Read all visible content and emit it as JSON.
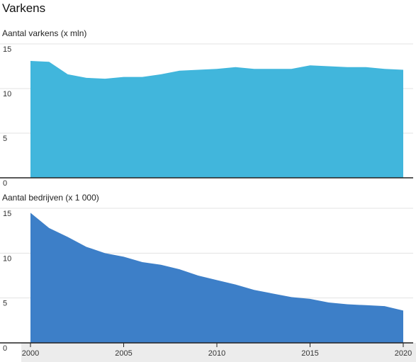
{
  "title": "Varkens",
  "colors": {
    "pigs": "#41b6dc",
    "farms": "#3d7fc8",
    "grid": "#e3e3e3",
    "axis": "#222222",
    "xband": "#ececec"
  },
  "chart_data": [
    {
      "type": "area",
      "title": "Aantal varkens (x mln)",
      "x": [
        2000,
        2001,
        2002,
        2003,
        2004,
        2005,
        2006,
        2007,
        2008,
        2009,
        2010,
        2011,
        2012,
        2013,
        2014,
        2015,
        2016,
        2017,
        2018,
        2019,
        2020
      ],
      "values": [
        13.1,
        13.0,
        11.6,
        11.2,
        11.1,
        11.3,
        11.3,
        11.6,
        12.0,
        12.1,
        12.2,
        12.4,
        12.2,
        12.2,
        12.2,
        12.6,
        12.5,
        12.4,
        12.4,
        12.2,
        12.1
      ],
      "ylim": [
        0,
        15
      ],
      "yticks": [
        "15",
        "10",
        "5",
        "0"
      ],
      "grid": true
    },
    {
      "type": "area",
      "title": "Aantal bedrijven (x 1 000)",
      "x": [
        2000,
        2001,
        2002,
        2003,
        2004,
        2005,
        2006,
        2007,
        2008,
        2009,
        2010,
        2011,
        2012,
        2013,
        2014,
        2015,
        2016,
        2017,
        2018,
        2019,
        2020
      ],
      "values": [
        14.5,
        12.8,
        11.8,
        10.7,
        10.0,
        9.6,
        9.0,
        8.7,
        8.2,
        7.5,
        7.0,
        6.5,
        5.9,
        5.5,
        5.1,
        4.9,
        4.5,
        4.3,
        4.2,
        4.1,
        3.6
      ],
      "ylim": [
        0,
        15
      ],
      "yticks": [
        "15",
        "10",
        "5",
        "0"
      ],
      "xticks": [
        "2000",
        "2005",
        "2010",
        "2015",
        "2020"
      ],
      "grid": true
    }
  ]
}
